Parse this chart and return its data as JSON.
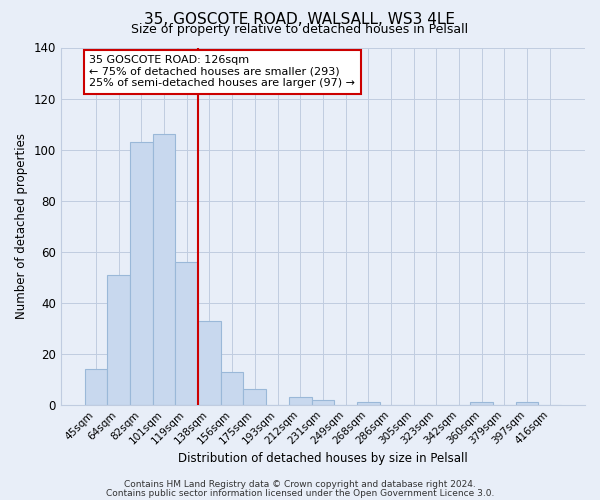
{
  "title": "35, GOSCOTE ROAD, WALSALL, WS3 4LE",
  "subtitle": "Size of property relative to detached houses in Pelsall",
  "xlabel": "Distribution of detached houses by size in Pelsall",
  "ylabel": "Number of detached properties",
  "bar_labels": [
    "45sqm",
    "64sqm",
    "82sqm",
    "101sqm",
    "119sqm",
    "138sqm",
    "156sqm",
    "175sqm",
    "193sqm",
    "212sqm",
    "231sqm",
    "249sqm",
    "268sqm",
    "286sqm",
    "305sqm",
    "323sqm",
    "342sqm",
    "360sqm",
    "379sqm",
    "397sqm",
    "416sqm"
  ],
  "bar_values": [
    14,
    51,
    103,
    106,
    56,
    33,
    13,
    6,
    0,
    3,
    2,
    0,
    1,
    0,
    0,
    0,
    0,
    1,
    0,
    1,
    0
  ],
  "bar_color": "#c8d8ee",
  "bar_edge_color": "#9ab8d8",
  "vline_x": 4.5,
  "vline_color": "#cc0000",
  "annotation_text": "35 GOSCOTE ROAD: 126sqm\n← 75% of detached houses are smaller (293)\n25% of semi-detached houses are larger (97) →",
  "annotation_box_color": "#ffffff",
  "annotation_box_edge": "#cc0000",
  "ylim": [
    0,
    140
  ],
  "yticks": [
    0,
    20,
    40,
    60,
    80,
    100,
    120,
    140
  ],
  "footer_line1": "Contains HM Land Registry data © Crown copyright and database right 2024.",
  "footer_line2": "Contains public sector information licensed under the Open Government Licence 3.0.",
  "background_color": "#e8eef8",
  "plot_background": "#e8eef8",
  "grid_color": "#c0cce0"
}
